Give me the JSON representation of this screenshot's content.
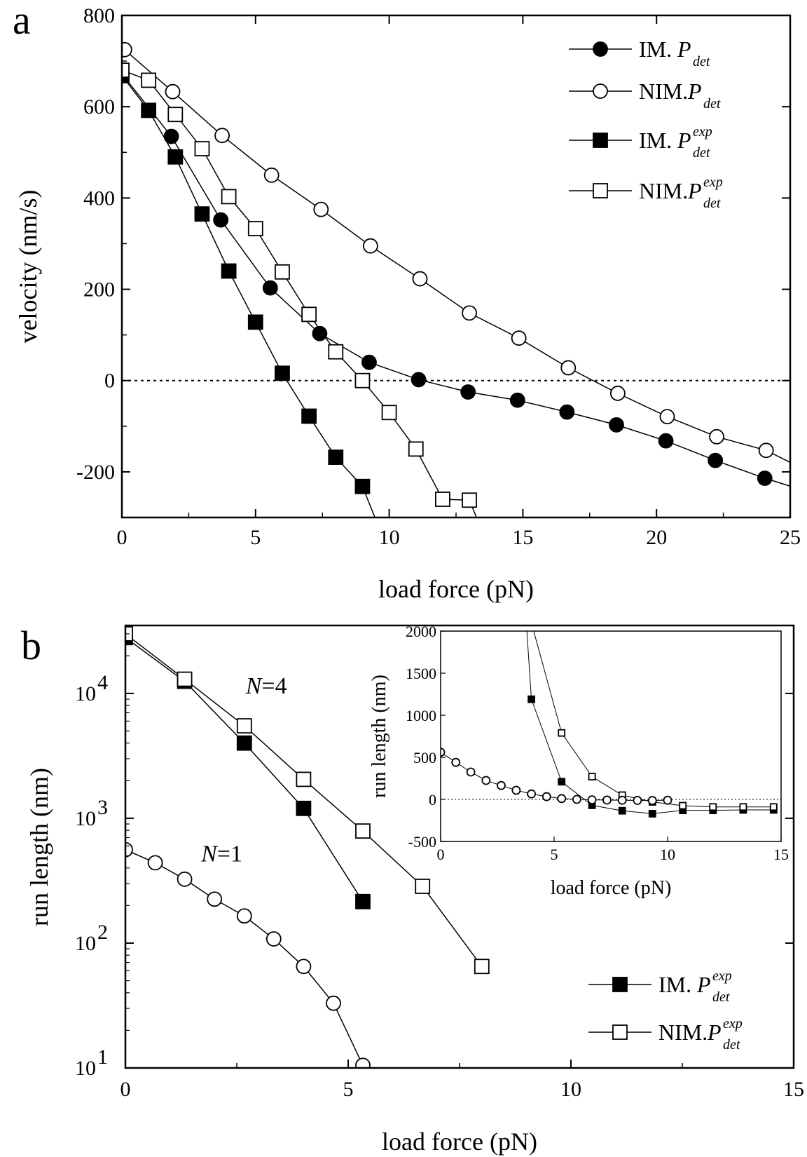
{
  "chart_data": [
    {
      "type": "line",
      "panel_label": "a",
      "xlabel": "load force (pN)",
      "ylabel": "velocity (nm/s)",
      "xlim": [
        0,
        25
      ],
      "ylim": [
        -300,
        800
      ],
      "xticks": [
        0,
        5,
        10,
        15,
        20,
        25
      ],
      "xtick_labels": [
        "0",
        "5",
        "10",
        "15",
        "20",
        "25"
      ],
      "yticks": [
        -200,
        0,
        200,
        400,
        600,
        800
      ],
      "ytick_labels": [
        "-200",
        "0",
        "200",
        "400",
        "600",
        "800"
      ],
      "reference_line": {
        "y": 0,
        "style": "dotted"
      },
      "legend_position": "top-right",
      "series": [
        {
          "name": "IM.",
          "sym": "P",
          "sub": "det",
          "sup": "",
          "marker": "circle",
          "filled": true,
          "x": [
            0,
            1.85,
            3.7,
            5.55,
            7.4,
            9.25,
            11.1,
            12.95,
            14.8,
            16.65,
            18.5,
            20.35,
            22.2,
            24.05,
            25.2
          ],
          "y": [
            672,
            535,
            352,
            203,
            103,
            40,
            2,
            -25,
            -43,
            -69,
            -97,
            -132,
            -175,
            -214,
            -235
          ],
          "marker_count": 14
        },
        {
          "name": "NIM.",
          "sym": "P",
          "sub": "det",
          "sup": "",
          "marker": "circle",
          "filled": false,
          "x": [
            0.1,
            1.9,
            3.75,
            5.6,
            7.45,
            9.3,
            11.15,
            13.0,
            14.85,
            16.7,
            18.55,
            20.4,
            22.25,
            24.1,
            25.2
          ],
          "y": [
            725,
            633,
            537,
            450,
            375,
            295,
            223,
            148,
            93,
            28,
            -28,
            -79,
            -123,
            -153,
            -185
          ],
          "marker_count": 14
        },
        {
          "name": "IM.",
          "sym": "P",
          "sub": "det",
          "sup": "exp",
          "marker": "square",
          "filled": true,
          "x": [
            0,
            1,
            2,
            3,
            4,
            5,
            6,
            7,
            8,
            9,
            9.5
          ],
          "y": [
            668,
            592,
            490,
            365,
            240,
            128,
            16,
            -78,
            -168,
            -232,
            -305
          ],
          "marker_count": 10
        },
        {
          "name": "NIM.",
          "sym": "P",
          "sub": "det",
          "sup": "exp",
          "marker": "square",
          "filled": false,
          "x": [
            0,
            1,
            2,
            3,
            4,
            5,
            6,
            7,
            8,
            9,
            10,
            11,
            12,
            13,
            13.3
          ],
          "y": [
            680,
            658,
            583,
            508,
            403,
            333,
            238,
            145,
            63,
            0,
            -70,
            -150,
            -260,
            -262,
            -305
          ],
          "marker_count": 14
        }
      ]
    },
    {
      "type": "line",
      "panel_label": "b",
      "xlabel": "load force (pN)",
      "ylabel": "run length (nm)",
      "yscale": "log",
      "xlim": [
        0,
        15
      ],
      "ylim": [
        10,
        35000
      ],
      "xticks": [
        0,
        5,
        10,
        15
      ],
      "xtick_labels": [
        "0",
        "5",
        "10",
        "15"
      ],
      "ytick_exponents": [
        "1",
        "2",
        "3",
        "4"
      ],
      "ytick_base": "10",
      "legend_position": "bottom-right",
      "annotations": [
        {
          "text_it": "N",
          "text": "=4",
          "x": 2.7,
          "y": 10000
        },
        {
          "text_it": "N",
          "text": "=1",
          "x": 1.7,
          "y": 450
        }
      ],
      "series": [
        {
          "name": "IM.",
          "sym": "P",
          "sub": "det",
          "sup": "exp",
          "marker": "square",
          "filled": true,
          "in_legend": true,
          "x": [
            0,
            1.33,
            2.67,
            4.0,
            5.33
          ],
          "y": [
            28000,
            12500,
            4000,
            1200,
            215
          ]
        },
        {
          "name": "NIM.",
          "sym": "P",
          "sub": "det",
          "sup": "exp",
          "marker": "square",
          "filled": false,
          "in_legend": true,
          "x": [
            0,
            1.33,
            2.67,
            4.0,
            5.33,
            6.67,
            8.0
          ],
          "y": [
            30000,
            13000,
            5500,
            2050,
            790,
            285,
            65
          ]
        },
        {
          "name": "",
          "sym": "",
          "sub": "",
          "sup": "",
          "marker": "circle",
          "filled": false,
          "in_legend": false,
          "x": [
            0,
            0.67,
            1.33,
            2.0,
            2.67,
            3.33,
            4.0,
            4.67,
            5.33
          ],
          "y": [
            560,
            440,
            325,
            225,
            165,
            108,
            65,
            33,
            10.5
          ]
        }
      ],
      "inset": {
        "xlabel": "load force (pN)",
        "ylabel": "run length (nm)",
        "xlim": [
          0,
          15
        ],
        "ylim": [
          -500,
          2000
        ],
        "xticks": [
          0,
          5,
          10,
          15
        ],
        "xtick_labels": [
          "0",
          "5",
          "10",
          "15"
        ],
        "yticks": [
          -500,
          0,
          500,
          1000,
          1500,
          2000
        ],
        "ytick_labels": [
          "-500",
          "0",
          "500",
          "1000",
          "1500",
          "2000"
        ],
        "reference_line": {
          "y": 0,
          "style": "dotted"
        },
        "series": [
          {
            "marker": "square",
            "filled": true,
            "x": [
              3.8,
              4.0,
              5.33,
              6.67,
              8.0,
              9.33,
              10.67,
              12.0,
              13.33,
              14.67
            ],
            "y": [
              2000,
              1190,
              210,
              -70,
              -135,
              -170,
              -130,
              -130,
              -125,
              -125
            ],
            "marker_from": 1
          },
          {
            "marker": "square",
            "filled": false,
            "x": [
              4.1,
              5.33,
              6.67,
              8.0,
              9.33,
              10.67,
              12.0,
              13.33,
              14.67
            ],
            "y": [
              2000,
              790,
              270,
              50,
              -30,
              -75,
              -90,
              -90,
              -90
            ],
            "marker_from": 1
          },
          {
            "marker": "circle",
            "filled": false,
            "x": [
              0,
              0.67,
              1.33,
              2.0,
              2.67,
              3.33,
              4.0,
              4.67,
              5.33,
              6.0,
              6.67,
              7.33,
              8.0,
              8.67,
              9.33,
              10.0
            ],
            "y": [
              560,
              440,
              325,
              225,
              165,
              108,
              65,
              33,
              10,
              0,
              -5,
              -8,
              -10,
              -12,
              -13,
              -10
            ],
            "marker_from": 0
          }
        ]
      }
    }
  ]
}
